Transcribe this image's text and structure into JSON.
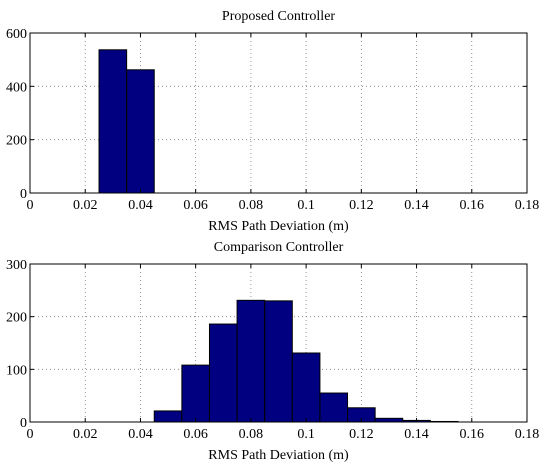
{
  "chart_data": [
    {
      "type": "bar",
      "title": "Proposed Controller",
      "xlabel": "RMS Path Deviation (m)",
      "ylabel": "",
      "xlim": [
        0,
        0.18
      ],
      "ylim": [
        0,
        600
      ],
      "xticks": [
        "0",
        "0.02",
        "0.04",
        "0.06",
        "0.08",
        "0.1",
        "0.12",
        "0.14",
        "0.16",
        "0.18"
      ],
      "yticks": [
        "0",
        "200",
        "400",
        "600"
      ],
      "grid": true,
      "bar_color": "#000080",
      "bins": [
        {
          "x0": 0.025,
          "x1": 0.035,
          "value": 537
        },
        {
          "x0": 0.035,
          "x1": 0.045,
          "value": 462
        }
      ]
    },
    {
      "type": "bar",
      "title": "Comparison Controller",
      "xlabel": "RMS Path Deviation (m)",
      "ylabel": "",
      "xlim": [
        0,
        0.18
      ],
      "ylim": [
        0,
        300
      ],
      "xticks": [
        "0",
        "0.02",
        "0.04",
        "0.06",
        "0.08",
        "0.1",
        "0.12",
        "0.14",
        "0.16",
        "0.18"
      ],
      "yticks": [
        "0",
        "100",
        "200",
        "300"
      ],
      "grid": true,
      "bar_color": "#000080",
      "bins": [
        {
          "x0": 0.045,
          "x1": 0.055,
          "value": 21
        },
        {
          "x0": 0.055,
          "x1": 0.065,
          "value": 108
        },
        {
          "x0": 0.065,
          "x1": 0.075,
          "value": 186
        },
        {
          "x0": 0.075,
          "x1": 0.085,
          "value": 231
        },
        {
          "x0": 0.085,
          "x1": 0.095,
          "value": 230
        },
        {
          "x0": 0.095,
          "x1": 0.105,
          "value": 131
        },
        {
          "x0": 0.105,
          "x1": 0.115,
          "value": 55
        },
        {
          "x0": 0.115,
          "x1": 0.125,
          "value": 27
        },
        {
          "x0": 0.125,
          "x1": 0.135,
          "value": 7
        },
        {
          "x0": 0.135,
          "x1": 0.145,
          "value": 3
        },
        {
          "x0": 0.145,
          "x1": 0.155,
          "value": 1
        }
      ]
    }
  ]
}
